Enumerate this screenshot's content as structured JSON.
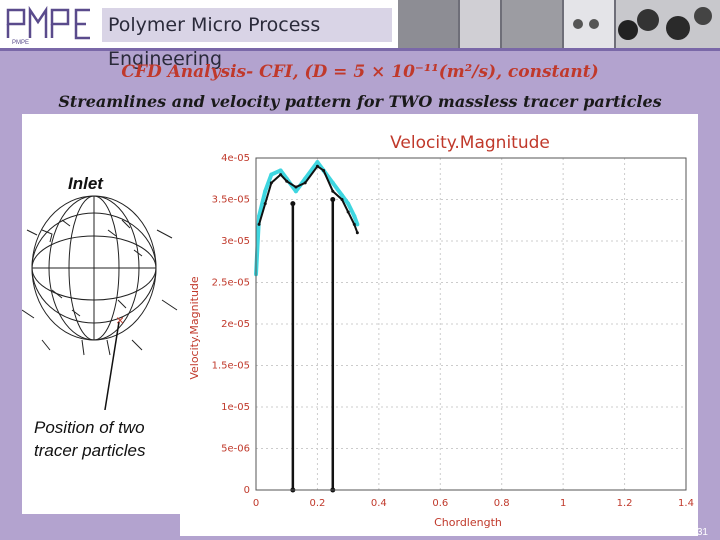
{
  "header": {
    "logo_text": "PMPE",
    "title": "Polymer Micro Process Engineering"
  },
  "slide": {
    "title_line1": "CFD Analysis- CFI, (D = 5 × 10⁻¹¹(m²/s), constant)",
    "title_line2": "Streamlines and velocity pattern for TWO massless tracer particles",
    "inlet_label": "Inlet",
    "position_label_1": "Position of two",
    "position_label_2": "tracer particles",
    "page_number": "31"
  },
  "colors": {
    "background": "#b3a3cf",
    "title_red": "#c0392b",
    "plot_text": "#c0392b",
    "series_black": "#111111",
    "series_cyan": "#3fd6e0"
  },
  "chart_data": {
    "type": "line",
    "title": "Velocity.Magnitude",
    "xlabel": "Chordlength",
    "ylabel": "Velocity.Magnitude",
    "x_ticks": [
      "0",
      "0.2",
      "0.4",
      "0.6",
      "0.8",
      "1",
      "1.2",
      "1.4"
    ],
    "y_ticks": [
      "0",
      "5e-06",
      "1e-05",
      "1.5e-05",
      "2e-05",
      "2.5e-05",
      "3e-05",
      "3.5e-05",
      "4e-05"
    ],
    "xlim": [
      0,
      1.4
    ],
    "ylim": [
      0,
      4e-05
    ],
    "grid": true,
    "series": [
      {
        "color": "#3fd6e0",
        "x": [
          0,
          0.01,
          0.03,
          0.05,
          0.08,
          0.1,
          0.13,
          0.16,
          0.2,
          0.22,
          0.25,
          0.28,
          0.3,
          0.32,
          0.33
        ],
        "y": [
          2.6e-05,
          3.3e-05,
          3.6e-05,
          3.8e-05,
          3.85e-05,
          3.75e-05,
          3.6e-05,
          3.75e-05,
          3.95e-05,
          3.85e-05,
          3.7e-05,
          3.55e-05,
          3.45e-05,
          3.3e-05,
          3.2e-05
        ]
      },
      {
        "color": "#111111",
        "x": [
          0.01,
          0.03,
          0.05,
          0.08,
          0.1,
          0.13,
          0.16,
          0.2,
          0.22,
          0.25,
          0.28,
          0.3,
          0.32,
          0.33
        ],
        "y": [
          3.2e-05,
          3.45e-05,
          3.7e-05,
          3.8e-05,
          3.72e-05,
          3.65e-05,
          3.7e-05,
          3.9e-05,
          3.85e-05,
          3.6e-05,
          3.5e-05,
          3.35e-05,
          3.2e-05,
          3.1e-05
        ]
      }
    ],
    "markers": [
      {
        "x": 0.12,
        "y": 3.45e-05
      },
      {
        "x": 0.25,
        "y": 3.5e-05
      }
    ]
  }
}
